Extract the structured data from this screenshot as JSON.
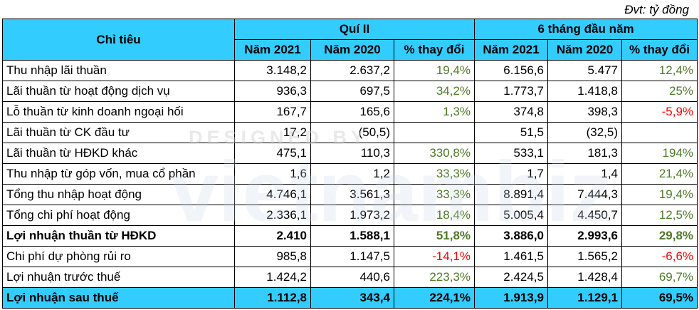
{
  "unit_note": "Đvt: tỷ đồng",
  "header": {
    "indicator": "Chỉ tiêu",
    "group_q2": "Quí II",
    "group_h1": "6 tháng đầu năm",
    "columns": [
      "Năm 2021",
      "Năm 2020",
      "% thay đổi",
      "Năm 2021",
      "Năm 2020",
      "% thay đổi"
    ]
  },
  "rows": [
    {
      "label": "Thu nhập lãi thuần",
      "q2_2021": "3.148,2",
      "q2_2020": "2.637,2",
      "q2_change": "19,4%",
      "h1_2021": "6.156,6",
      "h1_2020": "5.477",
      "h1_change": "12,4%"
    },
    {
      "label": "Lãi thuần từ hoạt động dịch vụ",
      "q2_2021": "936,3",
      "q2_2020": "697,5",
      "q2_change": "34,2%",
      "h1_2021": "1.773,7",
      "h1_2020": "1.418,8",
      "h1_change": "25%"
    },
    {
      "label": "Lỗ thuần từ kinh doanh ngoại hối",
      "q2_2021": "167,7",
      "q2_2020": "165,6",
      "q2_change": "1,3%",
      "h1_2021": "374,8",
      "h1_2020": "398,3",
      "h1_change": "-5,9%"
    },
    {
      "label": "Lãi thuần từ CK đầu tư",
      "q2_2021": "17,2",
      "q2_2020": "(50,5)",
      "q2_change": "",
      "h1_2021": "51,5",
      "h1_2020": "(32,5)",
      "h1_change": ""
    },
    {
      "label": "Lãi thuần từ HĐKD khác",
      "q2_2021": "475,1",
      "q2_2020": "110,3",
      "q2_change": "330,8%",
      "h1_2021": "533,1",
      "h1_2020": "181,3",
      "h1_change": "194%"
    },
    {
      "label": "Thu nhập từ góp vốn, mua cổ phần",
      "q2_2021": "1,6",
      "q2_2020": "1,2",
      "q2_change": "33,3%",
      "h1_2021": "1,7",
      "h1_2020": "1,4",
      "h1_change": "21,4%"
    },
    {
      "label": "Tổng thu nhập hoạt động",
      "q2_2021": "4.746,1",
      "q2_2020": "3.561,3",
      "q2_change": "33,3%",
      "h1_2021": "8.891,4",
      "h1_2020": "7.444,3",
      "h1_change": "19,4%"
    },
    {
      "label": "Tổng chi phí hoạt động",
      "q2_2021": "2.336,1",
      "q2_2020": "1.973,2",
      "q2_change": "18,4%",
      "h1_2021": "5.005,4",
      "h1_2020": "4.450,7",
      "h1_change": "12,5%"
    },
    {
      "label": "Lợi nhuận thuần từ HĐKD",
      "q2_2021": "2.410",
      "q2_2020": "1.588,1",
      "q2_change": "51,8%",
      "h1_2021": "3.886,0",
      "h1_2020": "2.993,6",
      "h1_change": "29,8%"
    },
    {
      "label": "Chi phí dự phòng rủi ro",
      "q2_2021": "985,8",
      "q2_2020": "1.147,5",
      "q2_change": "-14,1%",
      "h1_2021": "1.461,5",
      "h1_2020": "1.565,2",
      "h1_change": "-6,6%"
    },
    {
      "label": "Lợi nhuận trước thuế",
      "q2_2021": "1.424,2",
      "q2_2020": "440,6",
      "q2_change": "223,3%",
      "h1_2021": "2.424,5",
      "h1_2020": "1.428,4",
      "h1_change": "69,7%"
    },
    {
      "label": "Lợi nhuận sau thuế",
      "q2_2021": "1.112,8",
      "q2_2020": "343,4",
      "q2_change": "224,1%",
      "h1_2021": "1.913,9",
      "h1_2020": "1.129,1",
      "h1_change": "69,5%"
    }
  ],
  "watermark": {
    "line1": "DESIGNED BY",
    "line2": "vietnambiz"
  },
  "colors": {
    "header_bg": "#33ccff",
    "positive": "#4f7a28",
    "negative": "#ff0000"
  }
}
